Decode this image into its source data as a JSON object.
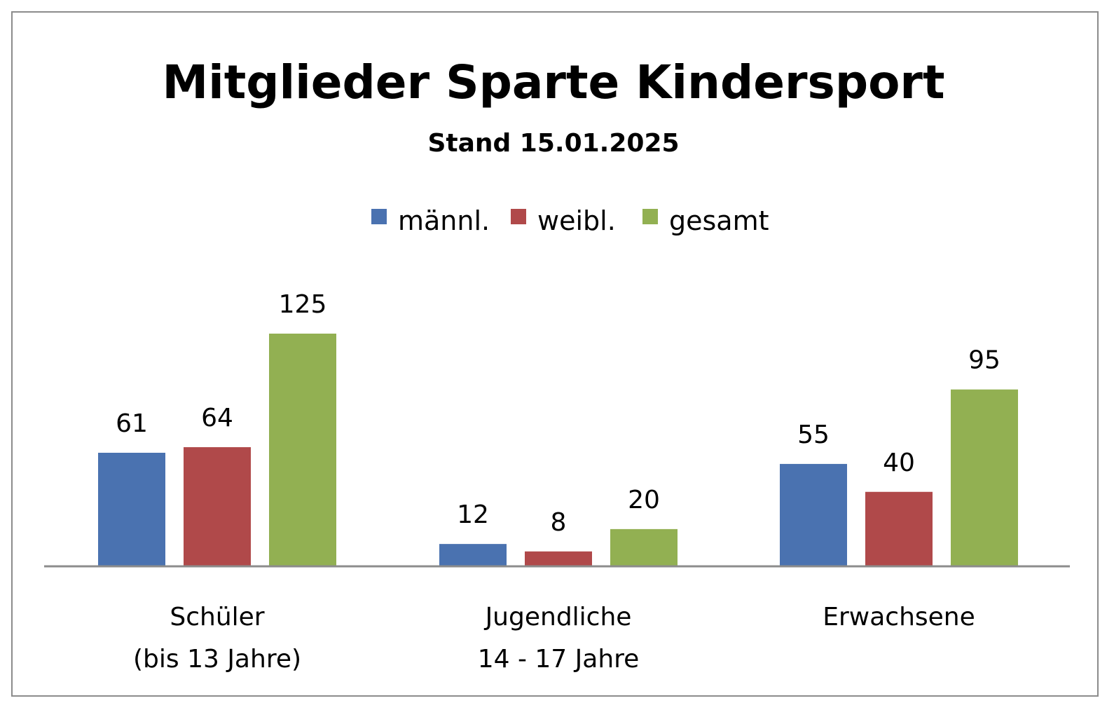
{
  "chart_data": {
    "type": "bar",
    "title": "Mitglieder Sparte Kindersport",
    "subtitle": "Stand 15.01.2025",
    "categories": [
      [
        "Schüler",
        "(bis 13 Jahre)"
      ],
      [
        "Jugendliche",
        "14 - 17 Jahre"
      ],
      [
        "Erwachsene"
      ]
    ],
    "series": [
      {
        "name": "männl.",
        "color": "#4a72b0",
        "values": [
          61,
          12,
          55
        ]
      },
      {
        "name": "weibl.",
        "color": "#b0494a",
        "values": [
          64,
          8,
          40
        ]
      },
      {
        "name": "gesamt",
        "color": "#92b052",
        "values": [
          125,
          20,
          95
        ]
      }
    ],
    "ylim": [
      0,
      125
    ],
    "grid": false,
    "y_axis_visible": false,
    "legend_position": "top-center",
    "data_labels": true,
    "axis_color": "#8c8c8c"
  }
}
